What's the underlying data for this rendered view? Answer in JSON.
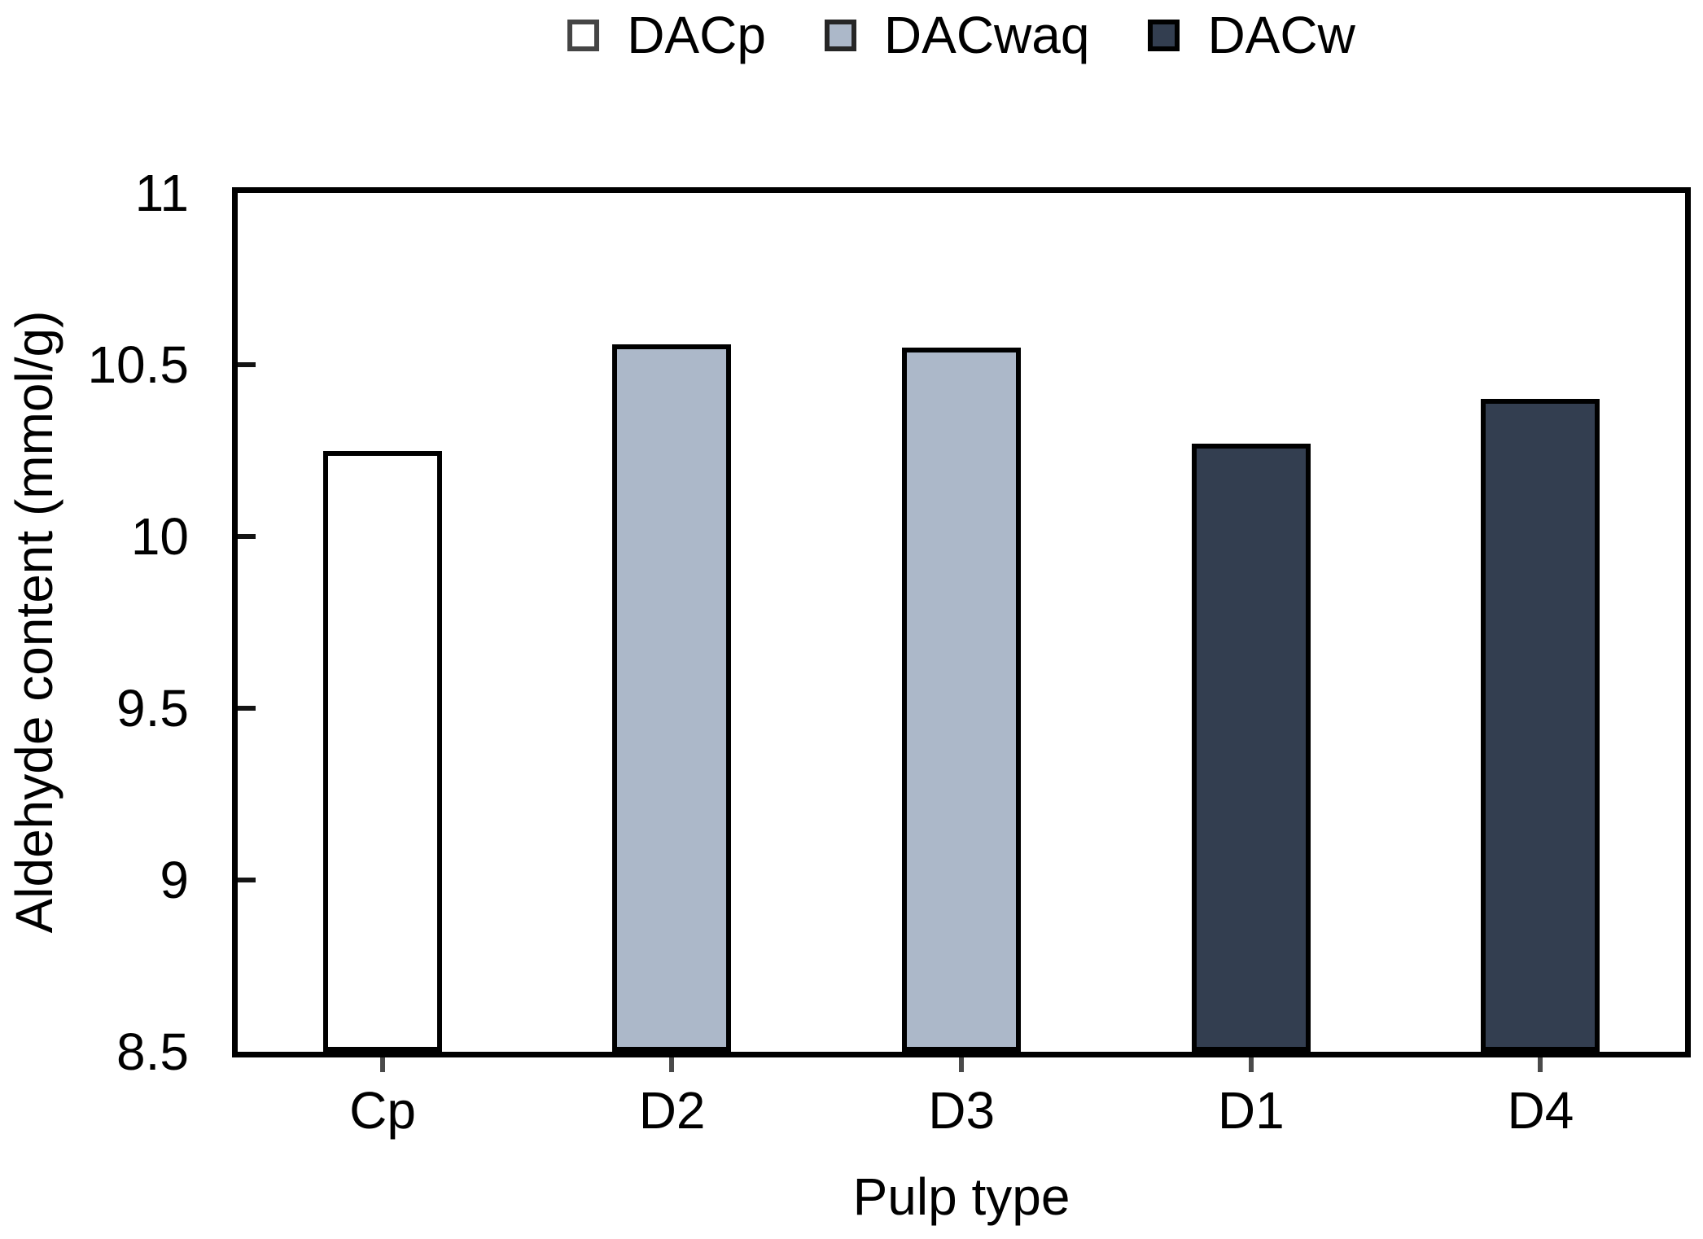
{
  "figure": {
    "background": "#ffffff"
  },
  "legend": {
    "position": "top-center",
    "items": [
      {
        "label": "DACp",
        "swatch_color": "#ffffff",
        "swatch_border": "#454545"
      },
      {
        "label": "DACwaq",
        "swatch_color": "#acb8c9",
        "swatch_border": "#262626"
      },
      {
        "label": "DACw",
        "swatch_color": "#333e50",
        "swatch_border": "#000000"
      }
    ]
  },
  "chart_data": {
    "type": "bar",
    "title": "",
    "xlabel": "Pulp type",
    "ylabel": "Aldehyde content (mmol/g)",
    "categories": [
      "Cp",
      "D2",
      "D3",
      "D1",
      "D4"
    ],
    "series": [
      {
        "name": "DACp",
        "color": "#ffffff",
        "values": [
          10.25,
          null,
          null,
          null,
          null
        ]
      },
      {
        "name": "DACwaq",
        "color": "#acb8c9",
        "values": [
          null,
          10.56,
          10.55,
          null,
          null
        ]
      },
      {
        "name": "DACw",
        "color": "#333e50",
        "values": [
          null,
          null,
          null,
          10.27,
          10.4
        ]
      }
    ],
    "bars": [
      {
        "category": "Cp",
        "value": 10.25,
        "series": "DACp"
      },
      {
        "category": "D2",
        "value": 10.56,
        "series": "DACwaq"
      },
      {
        "category": "D3",
        "value": 10.55,
        "series": "DACwaq"
      },
      {
        "category": "D1",
        "value": 10.27,
        "series": "DACw"
      },
      {
        "category": "D4",
        "value": 10.4,
        "series": "DACw"
      }
    ],
    "ylim": [
      8.5,
      11
    ],
    "ytick_step": 0.5,
    "yticks": [
      "8.5",
      "9",
      "9.5",
      "10",
      "10.5",
      "11"
    ],
    "grid": false,
    "legend_position": "top-center",
    "bar_border_color": "#000000",
    "axis_color": "#000000"
  }
}
